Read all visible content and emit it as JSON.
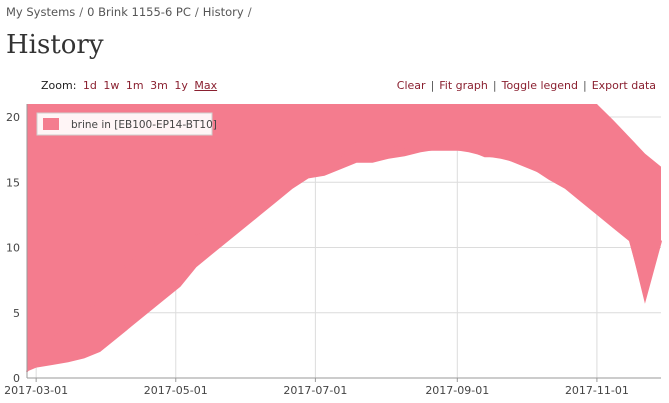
{
  "breadcrumb": {
    "items": [
      "My Systems",
      "0 Brink 1155-6 PC",
      "History"
    ],
    "trailing": "/"
  },
  "page_title": "History",
  "zoom": {
    "label": "Zoom:",
    "options": [
      "1d",
      "1w",
      "1m",
      "3m",
      "1y",
      "Max"
    ],
    "active": "Max"
  },
  "actions": [
    "Clear",
    "Fit graph",
    "Toggle legend",
    "Export data"
  ],
  "colors": {
    "series": "#f47c8e",
    "grid": "#dcdcdc",
    "axis": "#9a9a9a",
    "link": "#8a2030"
  },
  "chart_data": {
    "type": "area",
    "title": "",
    "xlabel": "",
    "ylabel": "",
    "x_range": [
      "2017-02-25",
      "2017-11-29"
    ],
    "ylim": [
      0,
      21
    ],
    "y_ticks": [
      0,
      5,
      10,
      15,
      20
    ],
    "x_ticks": [
      "2017-03-01",
      "2017-05-01",
      "2017-07-01",
      "2017-09-01",
      "2017-11-01"
    ],
    "grid": true,
    "legend_position": "top-left",
    "series": [
      {
        "name": "brine in [EB100-EP14-BT10]",
        "x": [
          "2017-02-25",
          "2017-03-01",
          "2017-03-08",
          "2017-03-15",
          "2017-03-22",
          "2017-03-29",
          "2017-04-05",
          "2017-04-12",
          "2017-04-19",
          "2017-04-26",
          "2017-05-03",
          "2017-05-10",
          "2017-05-17",
          "2017-05-24",
          "2017-05-31",
          "2017-06-07",
          "2017-06-14",
          "2017-06-21",
          "2017-06-28",
          "2017-07-05",
          "2017-07-12",
          "2017-07-19",
          "2017-07-26",
          "2017-08-02",
          "2017-08-09",
          "2017-08-16",
          "2017-08-23",
          "2017-08-30",
          "2017-09-06",
          "2017-09-13",
          "2017-09-20",
          "2017-09-27",
          "2017-10-04",
          "2017-10-11",
          "2017-10-18",
          "2017-10-25",
          "2017-11-01",
          "2017-11-08",
          "2017-11-15",
          "2017-11-22",
          "2017-11-29"
        ],
        "min": [
          0.5,
          0.8,
          1.0,
          1.2,
          1.5,
          2.0,
          3.0,
          4.0,
          5.0,
          6.0,
          7.0,
          8.5,
          9.5,
          10.5,
          11.5,
          12.5,
          13.5,
          14.5,
          15.3,
          15.5,
          16.0,
          16.5,
          16.5,
          16.8,
          17.0,
          17.3,
          17.5,
          17.5,
          17.3,
          17.0,
          16.8,
          16.5,
          16.0,
          15.2,
          14.5,
          13.5,
          12.5,
          11.5,
          10.5,
          6.0,
          10.5
        ],
        "max": [
          21,
          21,
          21,
          21,
          21,
          21,
          21,
          21,
          21,
          21,
          21,
          21,
          21,
          21,
          21,
          21,
          21,
          21,
          21,
          21,
          21,
          21,
          21,
          21,
          21,
          21,
          21,
          21,
          21,
          21,
          21,
          21,
          21,
          21,
          21,
          21,
          21,
          19.8,
          18.5,
          17.2,
          16.2
        ],
        "y": [
          0.5,
          2,
          3,
          4,
          5,
          6,
          8,
          9,
          10,
          11,
          8,
          11,
          12,
          13,
          13.5,
          14,
          15,
          15,
          15.5,
          16,
          17,
          18,
          18,
          18,
          17.5,
          17.5,
          17.5,
          17.5,
          17.5,
          17,
          17,
          16.5,
          16,
          15.5,
          15,
          14,
          13,
          12,
          11,
          6,
          10.5
        ]
      }
    ]
  }
}
